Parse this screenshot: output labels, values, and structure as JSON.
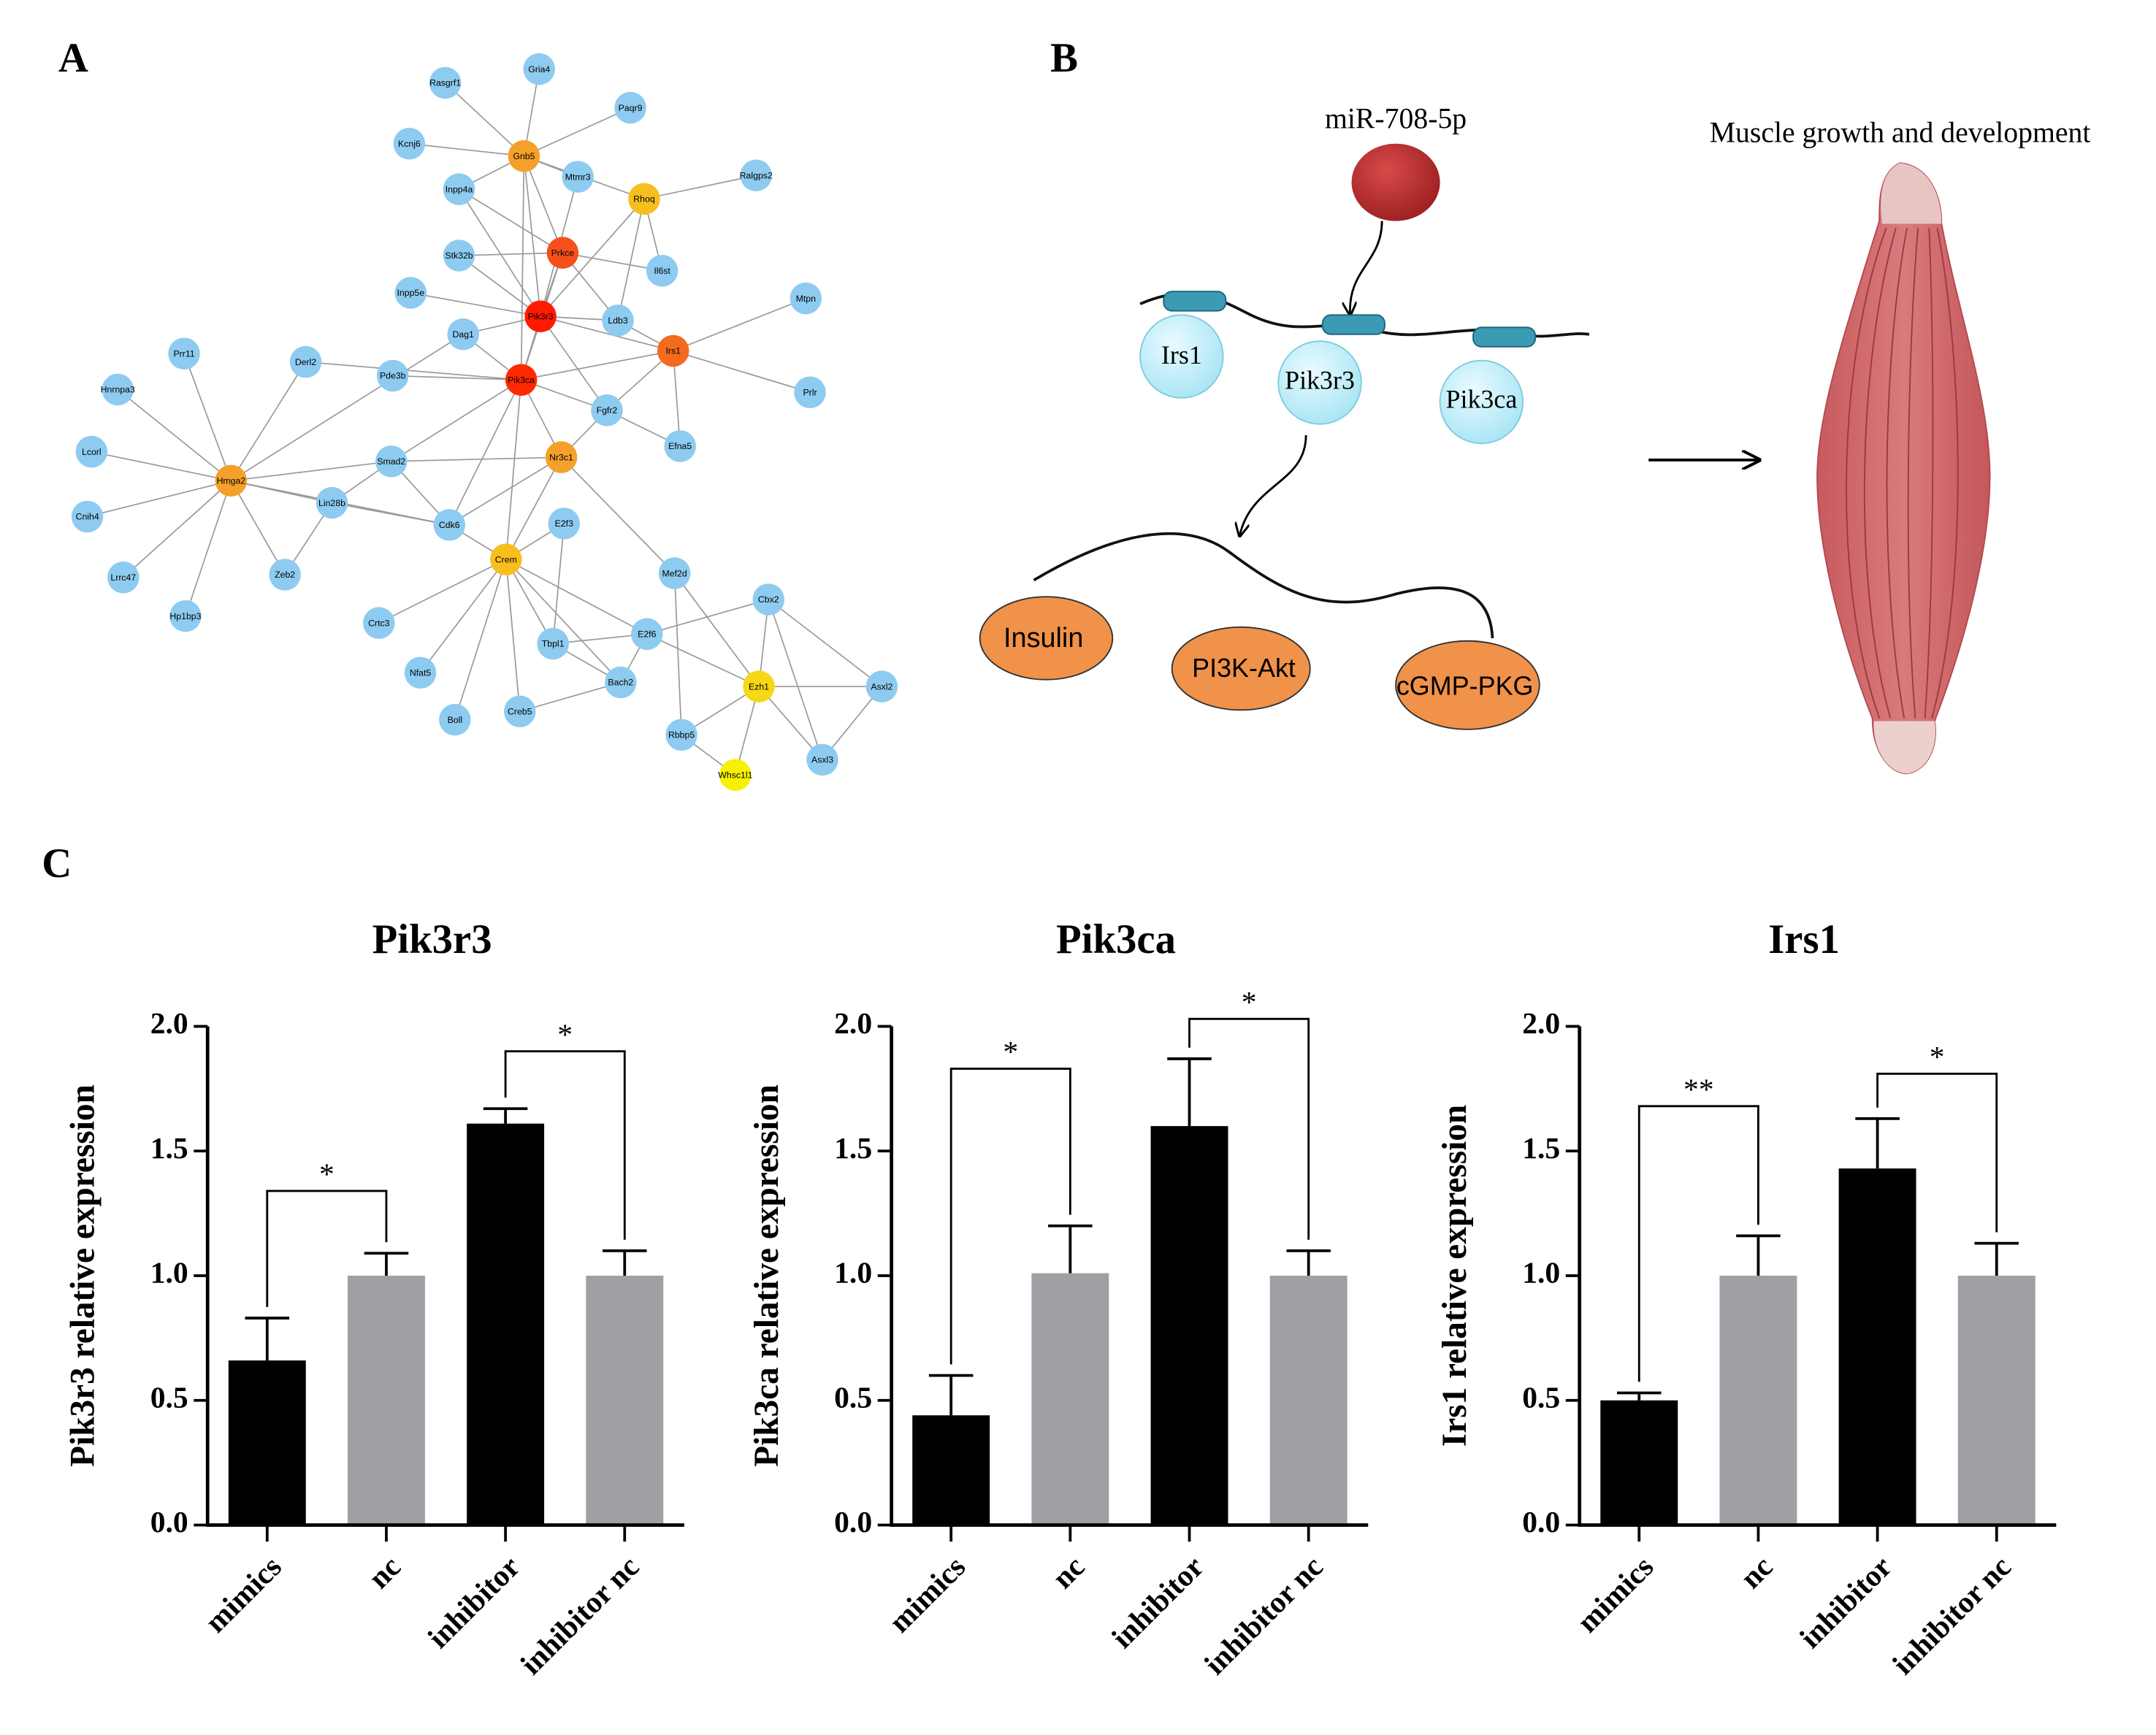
{
  "panels": [
    "A",
    "B",
    "C"
  ],
  "network": {
    "nodes": [
      {
        "label": "Rasgrf1",
        "color": "#8ecbf0"
      },
      {
        "label": "Gria4",
        "color": "#8ecbf0"
      },
      {
        "label": "Paqr9",
        "color": "#8ecbf0"
      },
      {
        "label": "Kcnj6",
        "color": "#8ecbf0"
      },
      {
        "label": "Gnb5",
        "color": "#f5a02a"
      },
      {
        "label": "Mtmr3",
        "color": "#8ecbf0"
      },
      {
        "label": "Rhoq",
        "color": "#f7bf1e"
      },
      {
        "label": "Ralgps2",
        "color": "#8ecbf0"
      },
      {
        "label": "Inpp4a",
        "color": "#8ecbf0"
      },
      {
        "label": "Prkce",
        "color": "#f4501c"
      },
      {
        "label": "Stk32b",
        "color": "#8ecbf0"
      },
      {
        "label": "Il6st",
        "color": "#8ecbf0"
      },
      {
        "label": "Mtpn",
        "color": "#8ecbf0"
      },
      {
        "label": "Inpp5e",
        "color": "#8ecbf0"
      },
      {
        "label": "Pik3r3",
        "color": "#ff1a00"
      },
      {
        "label": "Ldb3",
        "color": "#8ecbf0"
      },
      {
        "label": "Dag1",
        "color": "#8ecbf0"
      },
      {
        "label": "Irs1",
        "color": "#f46a1e"
      },
      {
        "label": "Prr11",
        "color": "#8ecbf0"
      },
      {
        "label": "Derl2",
        "color": "#8ecbf0"
      },
      {
        "label": "Hnrnpa3",
        "color": "#8ecbf0"
      },
      {
        "label": "Pde3b",
        "color": "#8ecbf0"
      },
      {
        "label": "Pik3ca",
        "color": "#ff2a00"
      },
      {
        "label": "Prlr",
        "color": "#8ecbf0"
      },
      {
        "label": "Fgfr2",
        "color": "#8ecbf0"
      },
      {
        "label": "Efna5",
        "color": "#8ecbf0"
      },
      {
        "label": "Lcorl",
        "color": "#8ecbf0"
      },
      {
        "label": "Smad2",
        "color": "#8ecbf0"
      },
      {
        "label": "Nr3c1",
        "color": "#f5a02a"
      },
      {
        "label": "Hmga2",
        "color": "#f5a02a"
      },
      {
        "label": "Lin28b",
        "color": "#8ecbf0"
      },
      {
        "label": "Cnih4",
        "color": "#8ecbf0"
      },
      {
        "label": "Cdk6",
        "color": "#8ecbf0"
      },
      {
        "label": "E2f3",
        "color": "#8ecbf0"
      },
      {
        "label": "Crem",
        "color": "#f7bf1e"
      },
      {
        "label": "Lrrc47",
        "color": "#8ecbf0"
      },
      {
        "label": "Zeb2",
        "color": "#8ecbf0"
      },
      {
        "label": "Mef2d",
        "color": "#8ecbf0"
      },
      {
        "label": "Cbx2",
        "color": "#8ecbf0"
      },
      {
        "label": "Hp1bp3",
        "color": "#8ecbf0"
      },
      {
        "label": "Crtc3",
        "color": "#8ecbf0"
      },
      {
        "label": "E2f6",
        "color": "#8ecbf0"
      },
      {
        "label": "Tbpl1",
        "color": "#8ecbf0"
      },
      {
        "label": "Nfat5",
        "color": "#8ecbf0"
      },
      {
        "label": "Ezh1",
        "color": "#f7d816"
      },
      {
        "label": "Asxl2",
        "color": "#8ecbf0"
      },
      {
        "label": "Bach2",
        "color": "#8ecbf0"
      },
      {
        "label": "Creb5",
        "color": "#8ecbf0"
      },
      {
        "label": "Boll",
        "color": "#8ecbf0"
      },
      {
        "label": "Rbbp5",
        "color": "#8ecbf0"
      },
      {
        "label": "Asxl3",
        "color": "#8ecbf0"
      },
      {
        "label": "Whsc1l1",
        "color": "#f7f000"
      }
    ]
  },
  "pathway": {
    "mirna": "miR-708-5p",
    "genes": [
      "Irs1",
      "Pik3r3",
      "Pik3ca"
    ],
    "pathways": [
      "Insulin",
      "PI3K-Akt",
      "cGMP-PKG"
    ],
    "outcome": "Muscle growth and development"
  },
  "chart_data": [
    {
      "type": "bar",
      "title": "Pik3r3",
      "y_label": "Pik3r3 relative expression",
      "categories": [
        "mimics",
        "nc",
        "inhibitor",
        "inhibitor nc"
      ],
      "values": [
        0.66,
        1.0,
        1.61,
        1.0
      ],
      "errors": [
        0.17,
        0.09,
        0.06,
        0.1
      ],
      "colors": [
        "#000000",
        "#a0a0a4",
        "#000000",
        "#a0a0a4"
      ],
      "ylim": [
        0,
        2
      ],
      "yticks": [
        {
          "value": 0,
          "label": "0.0"
        },
        0.5,
        {
          "value": 1,
          "label": "1.0"
        },
        1.5,
        {
          "value": 2,
          "label": "2.0"
        }
      ],
      "annotations": [
        {
          "text": "*",
          "from": 0,
          "to": 1,
          "y": 1.34
        },
        {
          "text": "*",
          "from": 2,
          "to": 3,
          "y": 1.9
        }
      ]
    },
    {
      "type": "bar",
      "title": "Pik3ca",
      "y_label": "Pik3ca relative expression",
      "categories": [
        "mimics",
        "nc",
        "inhibitor",
        "inhibitor nc"
      ],
      "values": [
        0.44,
        1.01,
        1.6,
        1.0
      ],
      "errors": [
        0.16,
        0.19,
        0.27,
        0.1
      ],
      "colors": [
        "#000000",
        "#a0a0a4",
        "#000000",
        "#a0a0a4"
      ],
      "ylim": [
        0,
        2
      ],
      "yticks": [
        {
          "value": 0,
          "label": "0.0"
        },
        0.5,
        {
          "value": 1,
          "label": "1.0"
        },
        1.5,
        {
          "value": 2,
          "label": "2.0"
        }
      ],
      "annotations": [
        {
          "text": "*",
          "from": 0,
          "to": 1,
          "y": 1.83
        },
        {
          "text": "*",
          "from": 2,
          "to": 3,
          "y": 2.03
        }
      ]
    },
    {
      "type": "bar",
      "title": "Irs1",
      "y_label": "Irs1 relative expression",
      "categories": [
        "mimics",
        "nc",
        "inhibitor",
        "inhibitor nc"
      ],
      "values": [
        0.5,
        1.0,
        1.43,
        1.0
      ],
      "errors": [
        0.03,
        0.16,
        0.2,
        0.13
      ],
      "colors": [
        "#000000",
        "#a0a0a4",
        "#000000",
        "#a0a0a4"
      ],
      "ylim": [
        0,
        2
      ],
      "yticks": [
        {
          "value": 0,
          "label": "0.0"
        },
        0.5,
        {
          "value": 1,
          "label": "1.0"
        },
        1.5,
        {
          "value": 2,
          "label": "2.0"
        }
      ],
      "annotations": [
        {
          "text": "**",
          "from": 0,
          "to": 1,
          "y": 1.68
        },
        {
          "text": "*",
          "from": 2,
          "to": 3,
          "y": 1.81
        }
      ]
    }
  ]
}
